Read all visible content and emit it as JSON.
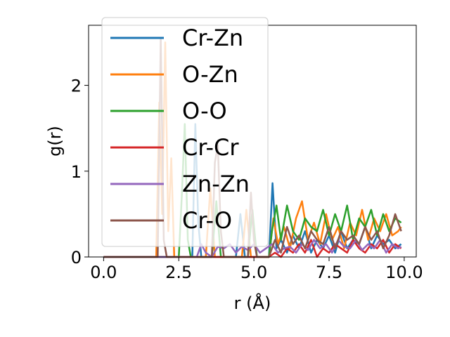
{
  "chart_data": {
    "type": "line",
    "xlabel": "r (Å)",
    "ylabel": "g(r)",
    "xlim": [
      -0.5,
      10.4
    ],
    "ylim": [
      0,
      2.7
    ],
    "xticks": [
      0.0,
      2.5,
      5.0,
      7.5,
      10.0
    ],
    "xtick_labels": [
      "0.0",
      "2.5",
      "5.0",
      "7.5",
      "10.0"
    ],
    "yticks": [
      0,
      1,
      2
    ],
    "ytick_labels": [
      "0",
      "1",
      "2"
    ],
    "grid": false,
    "legend_position": "upper-left",
    "series": [
      {
        "name": "Cr-Zn",
        "color": "#1f77b4",
        "x": [
          0,
          1.9,
          2.95,
          3.05,
          3.15,
          3.25,
          3.4,
          4.4,
          4.55,
          4.7,
          5.5,
          5.62,
          5.75,
          5.9,
          6.1,
          6.3,
          6.5,
          6.7,
          6.9,
          7.1,
          7.3,
          7.5,
          7.7,
          7.9,
          8.1,
          8.3,
          8.5,
          8.7,
          8.9,
          9.1,
          9.3,
          9.5,
          9.7,
          9.9
        ],
        "y": [
          0,
          0,
          0,
          1.55,
          0.4,
          0,
          0,
          0,
          0.5,
          0,
          0,
          0.86,
          0.1,
          0.2,
          0.05,
          0.25,
          0.1,
          0.3,
          0.05,
          0.2,
          0.1,
          0.25,
          0.05,
          0.3,
          0.1,
          0.2,
          0.15,
          0.35,
          0.1,
          0.25,
          0.15,
          0.2,
          0.1,
          0.15
        ]
      },
      {
        "name": "O-Zn",
        "color": "#ff7f0e",
        "x": [
          0,
          1.75,
          1.85,
          1.95,
          2.05,
          2.15,
          2.25,
          2.35,
          3.4,
          3.55,
          3.7,
          4.6,
          4.75,
          4.9,
          5.5,
          5.65,
          5.8,
          6.0,
          6.2,
          6.4,
          6.6,
          6.8,
          7.0,
          7.2,
          7.4,
          7.6,
          7.8,
          8.0,
          8.2,
          8.4,
          8.6,
          8.8,
          9.0,
          9.2,
          9.4,
          9.6,
          9.8,
          9.9
        ],
        "y": [
          0,
          0,
          1.8,
          0.5,
          2.5,
          0.3,
          1.15,
          0,
          0,
          0.8,
          0,
          0,
          0.55,
          0,
          0,
          0.45,
          0.15,
          0.35,
          0.1,
          0.45,
          0.65,
          0.2,
          0.4,
          0.15,
          0.5,
          0.2,
          0.35,
          0.1,
          0.4,
          0.25,
          0.55,
          0.2,
          0.45,
          0.3,
          0.5,
          0.25,
          0.3,
          0.35
        ]
      },
      {
        "name": "O-O",
        "color": "#2ca02c",
        "x": [
          0,
          2.5,
          2.6,
          2.7,
          2.8,
          2.9,
          3.6,
          3.75,
          3.9,
          4.8,
          4.95,
          5.1,
          5.5,
          5.6,
          5.75,
          5.9,
          6.1,
          6.3,
          6.5,
          6.7,
          6.9,
          7.1,
          7.3,
          7.5,
          7.7,
          7.9,
          8.1,
          8.3,
          8.5,
          8.7,
          8.9,
          9.1,
          9.3,
          9.5,
          9.7,
          9.9
        ],
        "y": [
          0,
          0,
          0.7,
          1.55,
          0.2,
          0,
          0,
          0.65,
          0,
          0,
          0.55,
          0,
          0,
          0.3,
          0.6,
          0.2,
          0.6,
          0.3,
          0.2,
          0.45,
          0.35,
          0.3,
          0.55,
          0.25,
          0.5,
          0.3,
          0.6,
          0.2,
          0.45,
          0.35,
          0.55,
          0.25,
          0.5,
          0.3,
          0.45,
          0.4
        ]
      },
      {
        "name": "Cr-Cr",
        "color": "#d62728",
        "x": [
          0,
          5.5,
          5.7,
          5.9,
          6.1,
          6.3,
          6.5,
          6.7,
          6.9,
          7.1,
          7.3,
          7.5,
          7.7,
          7.9,
          8.1,
          8.3,
          8.5,
          8.7,
          8.9,
          9.1,
          9.3,
          9.5,
          9.7,
          9.9
        ],
        "y": [
          0,
          0,
          0.05,
          0,
          0.1,
          0.05,
          0.15,
          0.05,
          0.2,
          0,
          0.1,
          0.05,
          0.15,
          0.1,
          0.05,
          0.2,
          0.1,
          0.05,
          0.15,
          0.1,
          0.2,
          0.05,
          0.15,
          0.1
        ]
      },
      {
        "name": "Zn-Zn",
        "color": "#9467bd",
        "x": [
          0,
          3.1,
          3.25,
          3.4,
          3.6,
          3.8,
          4.0,
          4.2,
          4.4,
          4.6,
          4.8,
          5.0,
          5.2,
          5.4,
          5.6,
          5.8,
          6.0,
          6.2,
          6.4,
          6.6,
          6.8,
          7.0,
          7.2,
          7.4,
          7.6,
          7.8,
          8.0,
          8.2,
          8.4,
          8.6,
          8.8,
          9.0,
          9.2,
          9.4,
          9.6,
          9.8,
          9.9
        ],
        "y": [
          0,
          0,
          0.15,
          0.05,
          0,
          0.12,
          0.1,
          0.15,
          0.05,
          0.12,
          0.08,
          0.15,
          0.05,
          0.1,
          0.15,
          0.05,
          0.1,
          0.12,
          0.05,
          0.15,
          0.08,
          0.2,
          0.1,
          0.15,
          0.05,
          0.2,
          0.12,
          0.1,
          0.2,
          0.08,
          0.15,
          0.1,
          0.2,
          0.05,
          0.15,
          0.1,
          0.12
        ]
      },
      {
        "name": "Cr-O",
        "color": "#8c564b",
        "x": [
          0,
          1.8,
          1.9,
          2.0,
          2.1,
          3.6,
          3.7,
          3.8,
          3.9,
          4.0,
          4.8,
          4.9,
          5.0,
          5.1,
          5.5,
          5.7,
          5.9,
          6.1,
          6.3,
          6.5,
          6.7,
          6.9,
          7.1,
          7.3,
          7.5,
          7.7,
          7.9,
          8.1,
          8.3,
          8.5,
          8.7,
          8.9,
          9.1,
          9.3,
          9.5,
          9.7,
          9.9
        ],
        "y": [
          0,
          0,
          2.55,
          0.2,
          0,
          0,
          1.1,
          1.3,
          0.3,
          0,
          0,
          0.75,
          0.2,
          0,
          0,
          0.2,
          0.05,
          0.35,
          0.15,
          0.25,
          0.1,
          0.3,
          0.2,
          0.15,
          0.35,
          0.1,
          0.3,
          0.2,
          0.25,
          0.15,
          0.35,
          0.2,
          0.3,
          0.1,
          0.25,
          0.5,
          0.3
        ]
      }
    ]
  }
}
